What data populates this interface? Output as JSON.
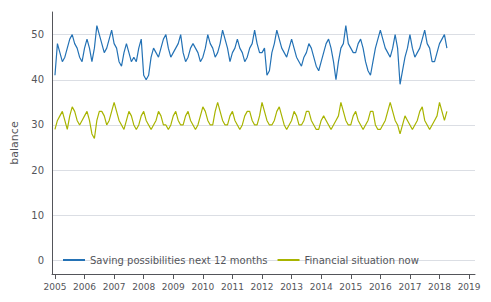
{
  "chart_data": {
    "type": "line",
    "title": "",
    "ylabel": "balance",
    "x": [
      2005,
      2005.0833333333333,
      2005.1666666666667,
      2005.25,
      2005.3333333333333,
      2005.4166666666667,
      2005.5,
      2005.5833333333333,
      2005.6666666666667,
      2005.75,
      2005.8333333333333,
      2005.9166666666667,
      2006,
      2006.0833333333333,
      2006.1666666666667,
      2006.25,
      2006.3333333333333,
      2006.4166666666667,
      2006.5,
      2006.5833333333333,
      2006.6666666666667,
      2006.75,
      2006.8333333333333,
      2006.9166666666667,
      2007,
      2007.0833333333333,
      2007.1666666666667,
      2007.25,
      2007.3333333333333,
      2007.4166666666667,
      2007.5,
      2007.5833333333333,
      2007.6666666666667,
      2007.75,
      2007.8333333333333,
      2007.9166666666667,
      2008,
      2008.0833333333333,
      2008.1666666666667,
      2008.25,
      2008.3333333333333,
      2008.4166666666667,
      2008.5,
      2008.5833333333333,
      2008.6666666666667,
      2008.75,
      2008.8333333333333,
      2008.9166666666667,
      2009,
      2009.0833333333333,
      2009.1666666666667,
      2009.25,
      2009.3333333333333,
      2009.4166666666667,
      2009.5,
      2009.5833333333333,
      2009.6666666666667,
      2009.75,
      2009.8333333333333,
      2009.9166666666667,
      2010,
      2010.0833333333333,
      2010.1666666666667,
      2010.25,
      2010.3333333333333,
      2010.4166666666667,
      2010.5,
      2010.5833333333333,
      2010.6666666666667,
      2010.75,
      2010.8333333333333,
      2010.9166666666667,
      2011,
      2011.0833333333333,
      2011.1666666666667,
      2011.25,
      2011.3333333333333,
      2011.4166666666667,
      2011.5,
      2011.5833333333333,
      2011.6666666666667,
      2011.75,
      2011.8333333333333,
      2011.9166666666667,
      2012,
      2012.0833333333333,
      2012.1666666666667,
      2012.25,
      2012.3333333333333,
      2012.4166666666667,
      2012.5,
      2012.5833333333333,
      2012.6666666666667,
      2012.75,
      2012.8333333333333,
      2012.9166666666667,
      2013,
      2013.0833333333333,
      2013.1666666666667,
      2013.25,
      2013.3333333333333,
      2013.4166666666667,
      2013.5,
      2013.5833333333333,
      2013.6666666666667,
      2013.75,
      2013.8333333333333,
      2013.9166666666667,
      2014,
      2014.0833333333333,
      2014.1666666666667,
      2014.25,
      2014.3333333333333,
      2014.4166666666667,
      2014.5,
      2014.5833333333333,
      2014.6666666666667,
      2014.75,
      2014.8333333333333,
      2014.9166666666667,
      2015,
      2015.0833333333333,
      2015.1666666666667,
      2015.25,
      2015.3333333333333,
      2015.4166666666667,
      2015.5,
      2015.5833333333333,
      2015.6666666666667,
      2015.75,
      2015.8333333333333,
      2015.9166666666667,
      2016,
      2016.0833333333333,
      2016.1666666666667,
      2016.25,
      2016.3333333333333,
      2016.4166666666667,
      2016.5,
      2016.5833333333333,
      2016.6666666666667,
      2016.75,
      2016.8333333333333,
      2016.9166666666667,
      2017,
      2017.0833333333333,
      2017.1666666666667,
      2017.25,
      2017.3333333333333,
      2017.4166666666667,
      2017.5,
      2017.5833333333333,
      2017.6666666666667,
      2017.75,
      2017.8333333333333,
      2017.9166666666667,
      2018,
      2018.0833333333333,
      2018.1666666666667,
      2018.25
    ],
    "series": [
      {
        "name": "Saving possibilities next 12 months",
        "color": "#2472b5",
        "values": [
          41,
          48,
          46,
          44,
          45,
          47,
          49,
          50,
          48,
          47,
          45,
          44,
          47,
          49,
          47,
          44,
          47,
          52,
          50,
          48,
          46,
          47,
          49,
          51,
          48,
          47,
          44,
          43,
          46,
          48,
          46,
          44,
          45,
          44,
          47,
          49,
          41,
          40,
          41,
          45,
          47,
          46,
          45,
          47,
          49,
          50,
          47,
          45,
          46,
          47,
          48,
          50,
          46,
          44,
          45,
          47,
          48,
          47,
          46,
          44,
          45,
          47,
          50,
          48,
          47,
          45,
          46,
          48,
          51,
          49,
          47,
          44,
          46,
          47,
          49,
          47,
          46,
          44,
          45,
          47,
          48,
          51,
          48,
          46,
          46,
          47,
          41,
          42,
          46,
          48,
          51,
          49,
          47,
          46,
          45,
          47,
          49,
          47,
          45,
          44,
          43,
          45,
          46,
          48,
          47,
          45,
          43,
          42,
          44,
          46,
          48,
          49,
          47,
          44,
          40,
          44,
          47,
          48,
          52,
          48,
          47,
          46,
          46,
          48,
          49,
          47,
          44,
          42,
          41,
          44,
          47,
          49,
          51,
          49,
          47,
          46,
          45,
          47,
          50,
          47,
          39,
          42,
          45,
          47,
          50,
          47,
          45,
          46,
          47,
          49,
          51,
          48,
          47,
          44,
          44,
          46,
          48,
          49,
          50,
          47
        ]
      },
      {
        "name": "Financial situation now",
        "color": "#a8b400",
        "values": [
          29,
          31,
          32,
          33,
          31,
          29,
          32,
          34,
          33,
          31,
          30,
          31,
          32,
          33,
          31,
          28,
          27,
          31,
          33,
          33,
          32,
          30,
          31,
          33,
          35,
          33,
          31,
          30,
          29,
          31,
          33,
          32,
          30,
          29,
          30,
          32,
          33,
          31,
          30,
          29,
          30,
          31,
          33,
          32,
          30,
          30,
          29,
          30,
          32,
          33,
          31,
          30,
          30,
          32,
          33,
          31,
          30,
          29,
          30,
          32,
          34,
          33,
          31,
          30,
          30,
          33,
          35,
          33,
          31,
          30,
          30,
          32,
          33,
          31,
          30,
          29,
          30,
          32,
          33,
          33,
          31,
          30,
          30,
          32,
          35,
          33,
          31,
          30,
          30,
          31,
          33,
          34,
          32,
          30,
          29,
          30,
          31,
          33,
          32,
          30,
          30,
          31,
          33,
          33,
          31,
          30,
          29,
          29,
          31,
          32,
          31,
          30,
          29,
          30,
          31,
          32,
          35,
          33,
          31,
          30,
          30,
          32,
          33,
          31,
          30,
          29,
          30,
          31,
          33,
          33,
          30,
          29,
          29,
          30,
          31,
          33,
          35,
          33,
          31,
          30,
          28,
          30,
          32,
          31,
          30,
          29,
          30,
          31,
          33,
          34,
          31,
          30,
          29,
          30,
          31,
          32,
          35,
          33,
          31,
          33
        ]
      }
    ],
    "xlim": [
      2004.9,
      2019.2
    ],
    "xticks": [
      2005,
      2006,
      2007,
      2008,
      2009,
      2010,
      2011,
      2012,
      2013,
      2014,
      2015,
      2016,
      2017,
      2018,
      2019
    ],
    "ylim": [
      -3,
      55
    ],
    "yticks": [
      0,
      10,
      20,
      30,
      40,
      50
    ],
    "grid": true,
    "legend": "lower left"
  }
}
